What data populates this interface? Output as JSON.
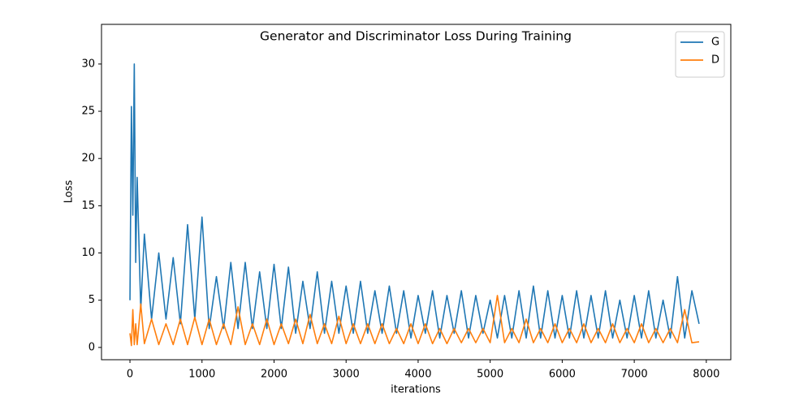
{
  "chart_data": {
    "type": "line",
    "title": "Generator and Discriminator Loss During Training",
    "xlabel": "iterations",
    "ylabel": "Loss",
    "x": [
      0,
      20,
      40,
      60,
      80,
      100,
      150,
      200,
      300,
      400,
      500,
      600,
      700,
      800,
      900,
      1000,
      1100,
      1200,
      1300,
      1400,
      1500,
      1600,
      1700,
      1800,
      1900,
      2000,
      2100,
      2200,
      2300,
      2400,
      2500,
      2600,
      2700,
      2800,
      2900,
      3000,
      3100,
      3200,
      3300,
      3400,
      3500,
      3600,
      3700,
      3800,
      3900,
      4000,
      4100,
      4200,
      4300,
      4400,
      4500,
      4600,
      4700,
      4800,
      4900,
      5000,
      5100,
      5200,
      5300,
      5400,
      5500,
      5600,
      5700,
      5800,
      5900,
      6000,
      6100,
      6200,
      6300,
      6400,
      6500,
      6600,
      6700,
      6800,
      6900,
      7000,
      7100,
      7200,
      7300,
      7400,
      7500,
      7600,
      7700,
      7800,
      7900
    ],
    "series": [
      {
        "name": "G",
        "color": "#1f77b4",
        "values": [
          5,
          25.5,
          14,
          30,
          9,
          18,
          4,
          12,
          3,
          10,
          3,
          9.5,
          2.5,
          13,
          3,
          13.8,
          2,
          7.5,
          2,
          9,
          2,
          9,
          2,
          8,
          2,
          8.8,
          2,
          8.5,
          1.5,
          7,
          2,
          8,
          1.5,
          7,
          1.5,
          6.5,
          1.5,
          7,
          1.5,
          6,
          1.5,
          6.5,
          1.5,
          6,
          1,
          5.5,
          1.5,
          6,
          1,
          5.5,
          1.5,
          6,
          1,
          5.5,
          1.5,
          5,
          1,
          5.5,
          1,
          6,
          1,
          6.5,
          1,
          6,
          1,
          5.5,
          1,
          6,
          1,
          5.5,
          1,
          6,
          1,
          5,
          1,
          5.5,
          1,
          6,
          1,
          5,
          1,
          7.5,
          1,
          6,
          2.5
        ]
      },
      {
        "name": "D",
        "color": "#ff7f0e",
        "values": [
          1.5,
          0.2,
          4,
          0.3,
          2.5,
          0.3,
          4.6,
          0.4,
          3,
          0.3,
          2.5,
          0.3,
          3,
          0.3,
          3.2,
          0.3,
          3,
          0.3,
          2.5,
          0.3,
          4.3,
          0.3,
          2.5,
          0.3,
          3,
          0.3,
          2.5,
          0.4,
          3,
          0.4,
          3.5,
          0.4,
          2.5,
          0.4,
          3.3,
          0.4,
          2.5,
          0.4,
          2.5,
          0.4,
          2.5,
          0.4,
          2,
          0.4,
          2.5,
          0.4,
          2.5,
          0.4,
          2,
          0.4,
          2,
          0.5,
          2,
          0.5,
          2,
          0.5,
          5.5,
          0.5,
          2,
          0.5,
          3,
          0.5,
          2,
          0.5,
          2.5,
          0.5,
          2,
          0.5,
          2.5,
          0.5,
          2,
          0.5,
          2.5,
          0.5,
          2,
          0.5,
          2.5,
          0.5,
          2,
          0.5,
          2,
          0.5,
          4,
          0.5,
          0.6
        ]
      }
    ],
    "xlim": [
      -395,
      8340
    ],
    "ylim": [
      -1.3,
      34.2
    ],
    "xticks": [
      0,
      1000,
      2000,
      3000,
      4000,
      5000,
      6000,
      7000,
      8000
    ],
    "yticks": [
      0,
      5,
      10,
      15,
      20,
      25,
      30
    ],
    "grid": false,
    "legend": "upper right"
  }
}
